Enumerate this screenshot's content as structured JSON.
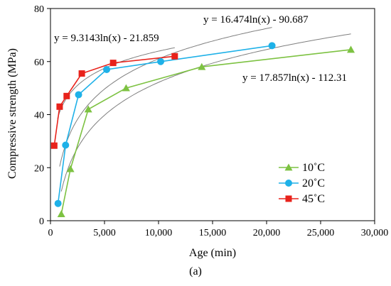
{
  "chart_data": {
    "type": "scatter",
    "title": "",
    "caption": "(a)",
    "xlabel": "Age (min)",
    "ylabel": "Compressive strength (MPa)",
    "xlim": [
      0,
      30000
    ],
    "ylim": [
      0,
      80
    ],
    "xticks": [
      0,
      5000,
      10000,
      15000,
      20000,
      25000,
      30000
    ],
    "xtick_labels": [
      "0",
      "5,000",
      "10,000",
      "15,000",
      "20,000",
      "25,000",
      "30,000"
    ],
    "yticks": [
      0,
      20,
      40,
      60,
      80
    ],
    "ytick_labels": [
      "0",
      "20",
      "40",
      "60",
      "80"
    ],
    "grid": false,
    "legend_position": "lower-right",
    "series": [
      {
        "name": "10˚C",
        "color": "#7DC242",
        "marker": "triangle",
        "x": [
          1000,
          1850,
          3500,
          7000,
          14000,
          27800
        ],
        "y": [
          2.5,
          19.5,
          42,
          50,
          58,
          64.5
        ],
        "fit": {
          "a": 17.857,
          "b": -112.31,
          "x_range": [
            1000,
            27800
          ],
          "color": "#7f7f7f"
        }
      },
      {
        "name": "20˚C",
        "color": "#1EB1E8",
        "marker": "circle",
        "x": [
          700,
          1400,
          2600,
          5200,
          10200,
          20500
        ],
        "y": [
          6.5,
          28.5,
          47.5,
          57,
          60,
          66
        ],
        "fit": {
          "a": 16.474,
          "b": -90.687,
          "x_range": [
            850,
            20500
          ],
          "color": "#7f7f7f"
        }
      },
      {
        "name": "45˚C",
        "color": "#E8221B",
        "marker": "square",
        "x": [
          350,
          850,
          1500,
          2900,
          5800,
          11500
        ],
        "y": [
          28.3,
          43,
          47,
          55.5,
          59.5,
          62
        ],
        "fit": {
          "a": 9.3143,
          "b": -21.859,
          "x_range": [
            650,
            11500
          ],
          "color": "#7f7f7f"
        }
      }
    ],
    "annotations": [
      {
        "text": "y = 9.3143ln(x) - 21.859",
        "for": "45˚C"
      },
      {
        "text": "y = 16.474ln(x) - 90.687",
        "for": "20˚C"
      },
      {
        "text": "y = 17.857ln(x) - 112.31",
        "for": "10˚C"
      }
    ]
  }
}
